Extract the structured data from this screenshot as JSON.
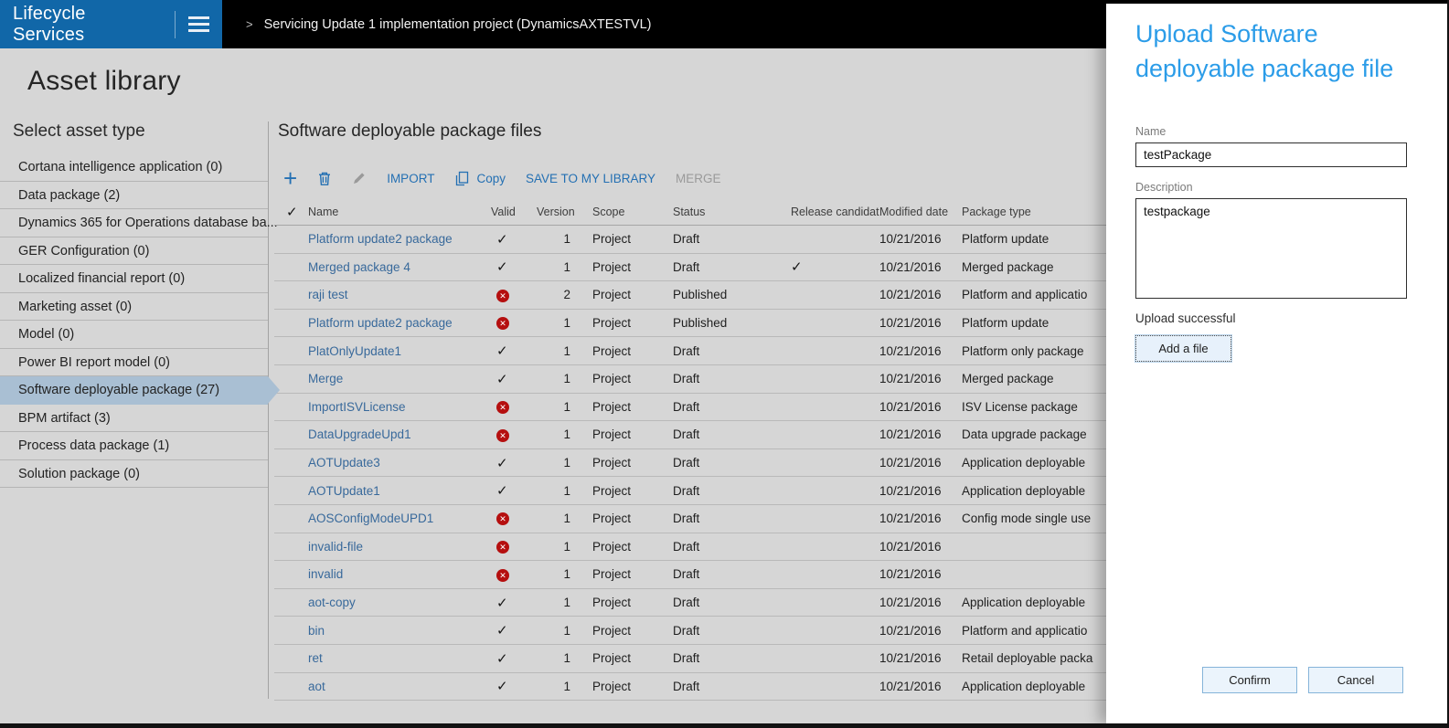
{
  "topbar": {
    "brand": "Lifecycle Services",
    "breadcrumb_chevron": ">",
    "breadcrumb": "Servicing Update 1 implementation project (DynamicsAXTESTVL)"
  },
  "page": {
    "title": "Asset library"
  },
  "sidebar": {
    "title": "Select asset type",
    "items": [
      {
        "label": "Cortana intelligence application (0)",
        "selected": false
      },
      {
        "label": "Data package (2)",
        "selected": false
      },
      {
        "label": "Dynamics 365 for Operations database ba...",
        "selected": false
      },
      {
        "label": "GER Configuration (0)",
        "selected": false
      },
      {
        "label": "Localized financial report (0)",
        "selected": false
      },
      {
        "label": "Marketing asset (0)",
        "selected": false
      },
      {
        "label": "Model (0)",
        "selected": false
      },
      {
        "label": "Power BI report model (0)",
        "selected": false
      },
      {
        "label": "Software deployable package (27)",
        "selected": true
      },
      {
        "label": "BPM artifact (3)",
        "selected": false
      },
      {
        "label": "Process data package (1)",
        "selected": false
      },
      {
        "label": "Solution package (0)",
        "selected": false
      }
    ]
  },
  "main": {
    "title": "Software deployable package files",
    "toolbar": {
      "add": "+",
      "import": "IMPORT",
      "copy": "Copy",
      "save_to_library": "SAVE TO MY LIBRARY",
      "merge": "MERGE"
    },
    "table": {
      "columns": [
        "Name",
        "Valid",
        "Version",
        "Scope",
        "Status",
        "Release candidate",
        "Modified date",
        "Package type"
      ],
      "rows": [
        {
          "name": "Platform update2 package",
          "valid": true,
          "version": "1",
          "scope": "Project",
          "status": "Draft",
          "release_candidate": false,
          "modified": "10/21/2016",
          "package_type": "Platform update"
        },
        {
          "name": "Merged package 4",
          "valid": true,
          "version": "1",
          "scope": "Project",
          "status": "Draft",
          "release_candidate": true,
          "modified": "10/21/2016",
          "package_type": "Merged package"
        },
        {
          "name": "raji test",
          "valid": false,
          "version": "2",
          "scope": "Project",
          "status": "Published",
          "release_candidate": false,
          "modified": "10/21/2016",
          "package_type": "Platform and applicatio"
        },
        {
          "name": "Platform update2 package",
          "valid": false,
          "version": "1",
          "scope": "Project",
          "status": "Published",
          "release_candidate": false,
          "modified": "10/21/2016",
          "package_type": "Platform update"
        },
        {
          "name": "PlatOnlyUpdate1",
          "valid": true,
          "version": "1",
          "scope": "Project",
          "status": "Draft",
          "release_candidate": false,
          "modified": "10/21/2016",
          "package_type": "Platform only package"
        },
        {
          "name": "Merge",
          "valid": true,
          "version": "1",
          "scope": "Project",
          "status": "Draft",
          "release_candidate": false,
          "modified": "10/21/2016",
          "package_type": "Merged package"
        },
        {
          "name": "ImportISVLicense",
          "valid": false,
          "version": "1",
          "scope": "Project",
          "status": "Draft",
          "release_candidate": false,
          "modified": "10/21/2016",
          "package_type": "ISV License package"
        },
        {
          "name": "DataUpgradeUpd1",
          "valid": false,
          "version": "1",
          "scope": "Project",
          "status": "Draft",
          "release_candidate": false,
          "modified": "10/21/2016",
          "package_type": "Data upgrade package"
        },
        {
          "name": "AOTUpdate3",
          "valid": true,
          "version": "1",
          "scope": "Project",
          "status": "Draft",
          "release_candidate": false,
          "modified": "10/21/2016",
          "package_type": "Application deployable"
        },
        {
          "name": "AOTUpdate1",
          "valid": true,
          "version": "1",
          "scope": "Project",
          "status": "Draft",
          "release_candidate": false,
          "modified": "10/21/2016",
          "package_type": "Application deployable"
        },
        {
          "name": "AOSConfigModeUPD1",
          "valid": false,
          "version": "1",
          "scope": "Project",
          "status": "Draft",
          "release_candidate": false,
          "modified": "10/21/2016",
          "package_type": "Config mode single use"
        },
        {
          "name": "invalid-file",
          "valid": false,
          "version": "1",
          "scope": "Project",
          "status": "Draft",
          "release_candidate": false,
          "modified": "10/21/2016",
          "package_type": ""
        },
        {
          "name": "invalid",
          "valid": false,
          "version": "1",
          "scope": "Project",
          "status": "Draft",
          "release_candidate": false,
          "modified": "10/21/2016",
          "package_type": ""
        },
        {
          "name": "aot-copy",
          "valid": true,
          "version": "1",
          "scope": "Project",
          "status": "Draft",
          "release_candidate": false,
          "modified": "10/21/2016",
          "package_type": "Application deployable"
        },
        {
          "name": "bin",
          "valid": true,
          "version": "1",
          "scope": "Project",
          "status": "Draft",
          "release_candidate": false,
          "modified": "10/21/2016",
          "package_type": "Platform and applicatio"
        },
        {
          "name": "ret",
          "valid": true,
          "version": "1",
          "scope": "Project",
          "status": "Draft",
          "release_candidate": false,
          "modified": "10/21/2016",
          "package_type": "Retail deployable packa"
        },
        {
          "name": "aot",
          "valid": true,
          "version": "1",
          "scope": "Project",
          "status": "Draft",
          "release_candidate": false,
          "modified": "10/21/2016",
          "package_type": "Application deployable"
        }
      ]
    }
  },
  "panel": {
    "title": "Upload Software deployable package file",
    "name_label": "Name",
    "name_value": "testPackage",
    "description_label": "Description",
    "description_value": "testpackage",
    "status_text": "Upload successful",
    "add_file_label": "Add a file",
    "confirm_label": "Confirm",
    "cancel_label": "Cancel"
  },
  "colors": {
    "header_blue": "#1167a8",
    "panel_title_blue": "#2b9ce8",
    "toolbar_blue": "#2470b3",
    "link_blue": "#38699b",
    "selected_bg": "#a9bfd3",
    "invalid_red": "#b50f0f",
    "page_bg": "#d6d6d6"
  }
}
